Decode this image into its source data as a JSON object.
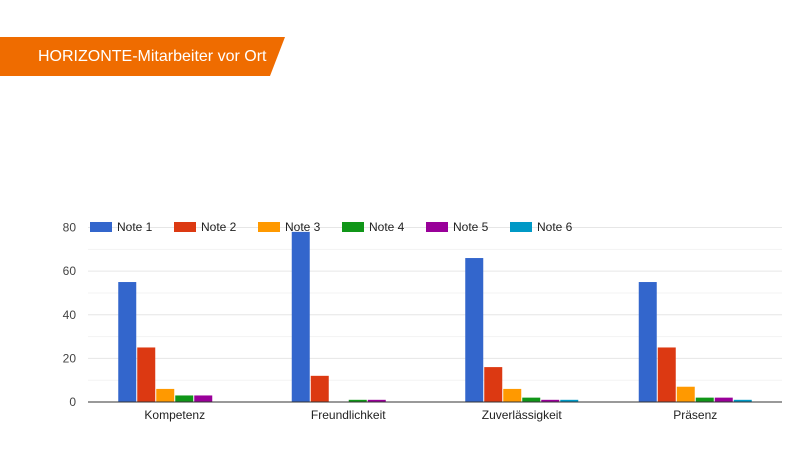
{
  "banner": {
    "title": "HORIZONTE-Mitarbeiter vor Ort",
    "color": "#ef6c00"
  },
  "chart_data": {
    "type": "bar",
    "categories": [
      "Kompetenz",
      "Freundlichkeit",
      "Zuverlässigkeit",
      "Präsenz"
    ],
    "series": [
      {
        "name": "Note 1",
        "color": "#3366cc",
        "values": [
          55,
          78,
          66,
          55
        ]
      },
      {
        "name": "Note 2",
        "color": "#dc3912",
        "values": [
          25,
          12,
          16,
          25
        ]
      },
      {
        "name": "Note 3",
        "color": "#ff9900",
        "values": [
          6,
          0,
          6,
          7
        ]
      },
      {
        "name": "Note 4",
        "color": "#109618",
        "values": [
          3,
          1,
          2,
          2
        ]
      },
      {
        "name": "Note 5",
        "color": "#990099",
        "values": [
          3,
          1,
          1,
          2
        ]
      },
      {
        "name": "Note 6",
        "color": "#0099c6",
        "values": [
          0,
          0,
          1,
          1
        ]
      }
    ],
    "y_ticks": [
      0,
      20,
      40,
      60,
      80
    ],
    "ylim": [
      0,
      80
    ],
    "grid": true,
    "legend_position": "top",
    "title": "",
    "xlabel": "",
    "ylabel": ""
  }
}
